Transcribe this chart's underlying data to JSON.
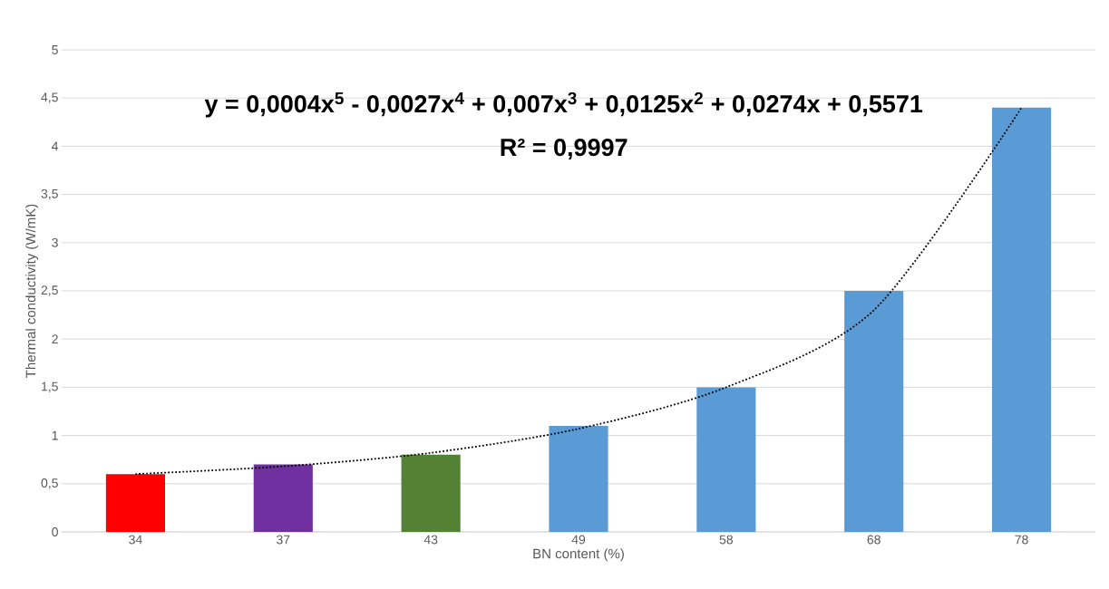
{
  "chart_data": {
    "type": "bar",
    "xlabel": "BN content (%)",
    "ylabel": "Thermal conductivity (W/mK)",
    "categories": [
      "34",
      "37",
      "43",
      "49",
      "58",
      "68",
      "78"
    ],
    "series": [
      {
        "values": [
          0.6,
          0.7,
          0.8,
          1.1,
          1.5,
          2.5,
          4.4
        ],
        "colors": [
          "#ff0000",
          "#7030a0",
          "#548235",
          "#5b9bd5",
          "#5b9bd5",
          "#5b9bd5",
          "#5b9bd5"
        ]
      },
      {
        "type": "line",
        "color": "#000000",
        "line_style": "dotted",
        "marker": "none",
        "values": [
          0.6,
          0.68,
          0.82,
          1.07,
          1.5,
          2.3,
          4.4
        ]
      }
    ],
    "annotations": [
      "y = 0,0004x$^{5}$ - 0,0027x$^{4}$ + 0,007x$^{3}$ + 0,0125x$^{2}$ + 0,0274x + 0,5571",
      "R² = 0,9997"
    ],
    "ylim": [
      0,
      5
    ],
    "yticks": [
      0,
      {
        "value": 0.5,
        "label": "0,5"
      },
      1,
      {
        "value": 1.5,
        "label": "1,5"
      },
      2,
      {
        "value": 2.5,
        "label": "2,5"
      },
      3,
      {
        "value": 3.5,
        "label": "3,5"
      },
      4,
      {
        "value": 4.5,
        "label": "4,5"
      },
      5
    ],
    "grid": "y"
  }
}
